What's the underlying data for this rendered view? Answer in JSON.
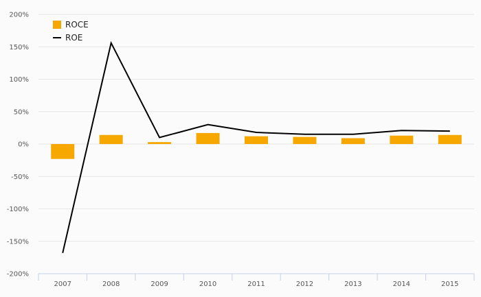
{
  "chart_data": {
    "type": "bar",
    "categories": [
      "2007",
      "2008",
      "2009",
      "2010",
      "2011",
      "2012",
      "2013",
      "2014",
      "2015"
    ],
    "series": [
      {
        "name": "ROCE",
        "type": "bar",
        "color": "#f7a800",
        "values": [
          -23,
          14,
          3,
          17,
          12,
          11,
          9,
          13,
          14
        ]
      },
      {
        "name": "ROE",
        "type": "line",
        "color": "#000000",
        "values": [
          -168,
          156,
          10,
          30,
          18,
          15,
          15,
          21,
          20
        ]
      }
    ],
    "ylim": [
      -200,
      200
    ],
    "yticks": [
      200,
      150,
      100,
      50,
      0,
      -50,
      -100,
      -150,
      -200
    ],
    "ytick_labels": [
      "200%",
      "150%",
      "100%",
      "50%",
      "0%",
      "-50%",
      "-100%",
      "-150%",
      "-200%"
    ],
    "grid": true,
    "legend_position": "top-left"
  }
}
